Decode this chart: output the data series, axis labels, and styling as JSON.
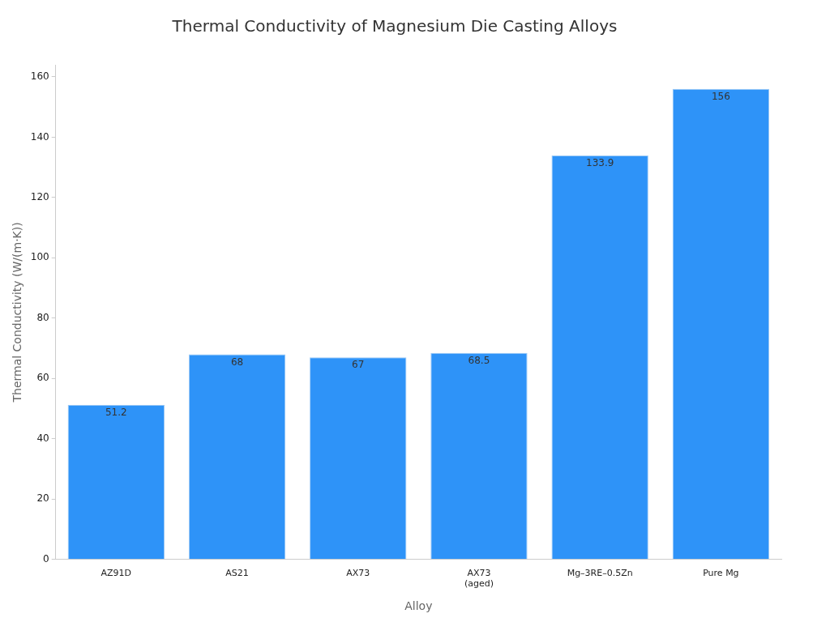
{
  "chart_data": {
    "type": "bar",
    "title": "Thermal Conductivity of Magnesium Die Casting Alloys",
    "xlabel": "Alloy",
    "ylabel": "Thermal Conductivity (W/(m·K))",
    "categories": [
      "AZ91D",
      "AS21",
      "AX73",
      "AX73\n(aged)",
      "Mg–3RE–0.5Zn",
      "Pure Mg"
    ],
    "values": [
      51.2,
      68,
      67,
      68.5,
      133.9,
      156
    ],
    "color": "#2e93f8",
    "ylim": [
      0,
      164
    ],
    "yticks": [
      0,
      20,
      40,
      60,
      80,
      100,
      120,
      140,
      160
    ],
    "grid": false,
    "legend": false,
    "data_labels": true
  }
}
